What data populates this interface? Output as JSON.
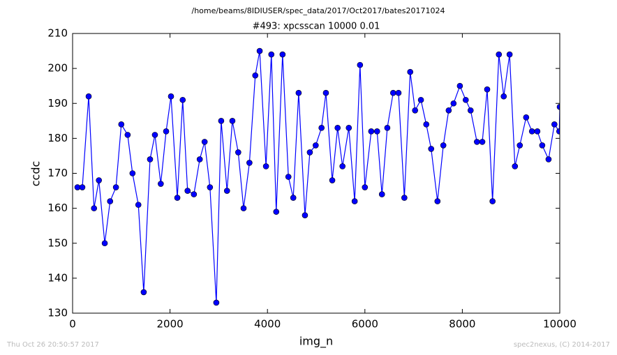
{
  "chart_data": {
    "type": "line",
    "suptitle": "/home/beams/8IDIUSER/spec_data/2017/Oct2017/bates20171024",
    "title": "#493: xpcsscan 10000 0.01",
    "xlabel": "img_n",
    "ylabel": "ccdc",
    "timestamp": "Thu Oct 26 20:50:57 2017",
    "credit": "spec2nexus, (C) 2014-2017",
    "color": "#0000ff",
    "marker": "circle",
    "grid": false,
    "xlim": [
      0,
      10000
    ],
    "xticks": [
      0,
      2000,
      4000,
      6000,
      8000,
      10000
    ],
    "ylim": [
      130,
      210
    ],
    "yticks": [
      130,
      140,
      150,
      160,
      170,
      180,
      190,
      200,
      210
    ],
    "x": [
      100,
      200,
      330,
      440,
      540,
      660,
      770,
      890,
      1000,
      1130,
      1230,
      1350,
      1460,
      1590,
      1690,
      1810,
      1920,
      2020,
      2150,
      2260,
      2360,
      2490,
      2610,
      2710,
      2820,
      2950,
      3050,
      3170,
      3280,
      3400,
      3510,
      3630,
      3750,
      3840,
      3970,
      4080,
      4180,
      4310,
      4430,
      4530,
      4640,
      4770,
      4870,
      4990,
      5110,
      5200,
      5330,
      5440,
      5540,
      5670,
      5790,
      5900,
      6000,
      6130,
      6250,
      6350,
      6460,
      6580,
      6690,
      6810,
      6930,
      7030,
      7150,
      7260,
      7360,
      7490,
      7610,
      7720,
      7820,
      7950,
      8070,
      8170,
      8300,
      8410,
      8510,
      8620,
      8750,
      8850,
      8970,
      9080,
      9180,
      9310,
      9430,
      9540,
      9640,
      9770,
      9890,
      9990,
      10000
    ],
    "values": [
      166,
      166,
      192,
      160,
      168,
      150,
      162,
      166,
      184,
      181,
      170,
      161,
      136,
      174,
      181,
      167,
      182,
      192,
      163,
      191,
      165,
      164,
      174,
      179,
      166,
      133,
      185,
      165,
      185,
      176,
      160,
      173,
      198,
      205,
      172,
      204,
      159,
      204,
      169,
      163,
      193,
      158,
      176,
      178,
      183,
      193,
      168,
      183,
      172,
      183,
      162,
      201,
      166,
      182,
      182,
      164,
      183,
      193,
      193,
      163,
      199,
      188,
      191,
      184,
      177,
      162,
      178,
      188,
      190,
      195,
      191,
      188,
      179,
      179,
      194,
      162,
      204,
      192,
      204,
      172,
      178,
      186,
      182,
      182,
      178,
      174,
      184,
      182,
      189
    ]
  }
}
